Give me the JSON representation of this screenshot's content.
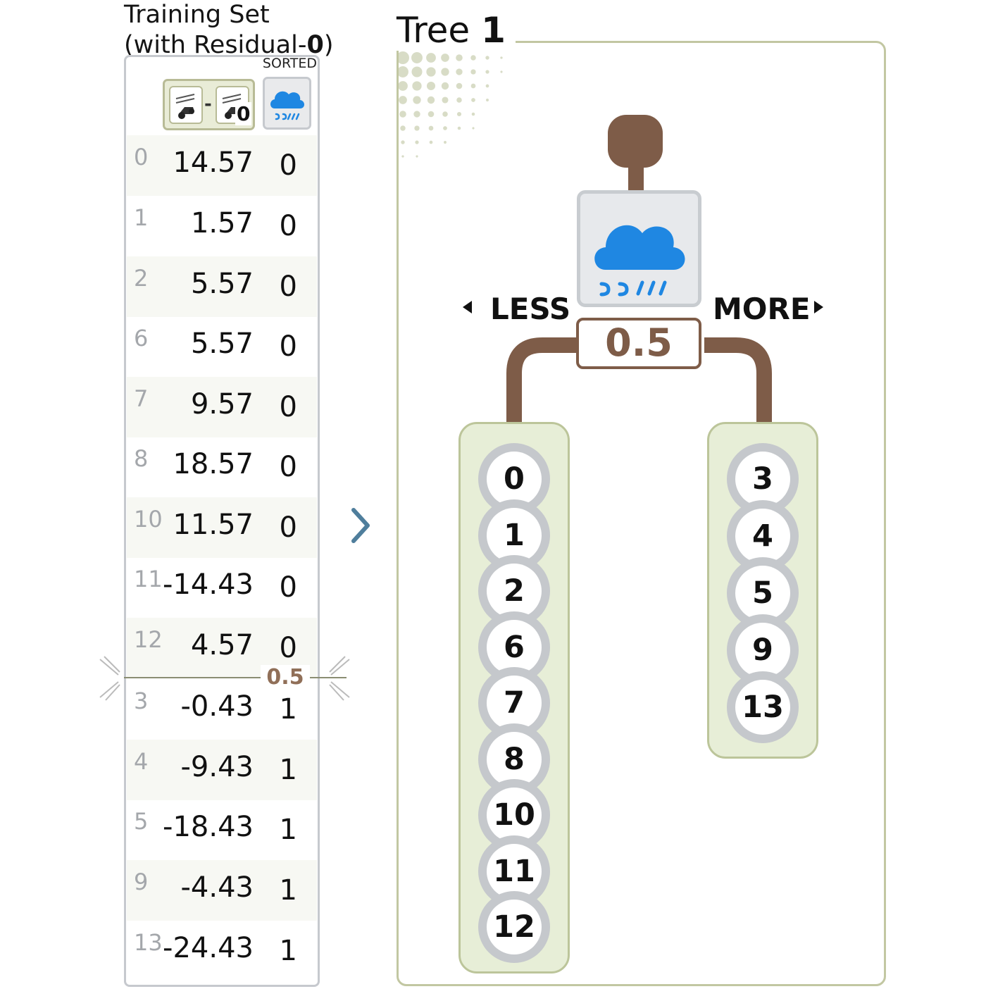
{
  "training_set": {
    "title_line1": "Training Set",
    "title_line2_prefix": "(with Residual-",
    "title_line2_emph": "0",
    "title_line2_suffix": ")",
    "sorted_label": "SORTED",
    "diff_header": {
      "separator": "-",
      "sub": "0",
      "icon_left": "car-speed-icon",
      "icon_right": "car-speed-icon"
    },
    "target_header": {
      "icon": "rain-cloud-icon"
    },
    "rows": [
      {
        "index": "0",
        "residual": "14.57",
        "target": "0"
      },
      {
        "index": "1",
        "residual": "1.57",
        "target": "0"
      },
      {
        "index": "2",
        "residual": "5.57",
        "target": "0"
      },
      {
        "index": "6",
        "residual": "5.57",
        "target": "0"
      },
      {
        "index": "7",
        "residual": "9.57",
        "target": "0"
      },
      {
        "index": "8",
        "residual": "18.57",
        "target": "0"
      },
      {
        "index": "10",
        "residual": "11.57",
        "target": "0"
      },
      {
        "index": "11",
        "residual": "-14.43",
        "target": "0"
      },
      {
        "index": "12",
        "residual": "4.57",
        "target": "0"
      },
      {
        "index": "3",
        "residual": "-0.43",
        "target": "1"
      },
      {
        "index": "4",
        "residual": "-9.43",
        "target": "1"
      },
      {
        "index": "5",
        "residual": "-18.43",
        "target": "1"
      },
      {
        "index": "9",
        "residual": "-4.43",
        "target": "1"
      },
      {
        "index": "13",
        "residual": "-24.43",
        "target": "1"
      }
    ],
    "split_value": "0.5"
  },
  "tree": {
    "title_prefix": "Tree ",
    "title_number": "1",
    "feature_icon": "rain-cloud-icon",
    "threshold": "0.5",
    "less_label": "LESS",
    "more_label": "MORE",
    "left_leaf": [
      "0",
      "1",
      "2",
      "6",
      "7",
      "8",
      "10",
      "11",
      "12"
    ],
    "right_leaf": [
      "3",
      "4",
      "5",
      "9",
      "13"
    ]
  },
  "colors": {
    "branch_brown": "#7e5c48",
    "leaf_green": "#e7eed7",
    "cloud_blue": "#1f87e2",
    "panel_border_grey": "#c6c9ce",
    "panel_border_green": "#c2c7a2"
  }
}
